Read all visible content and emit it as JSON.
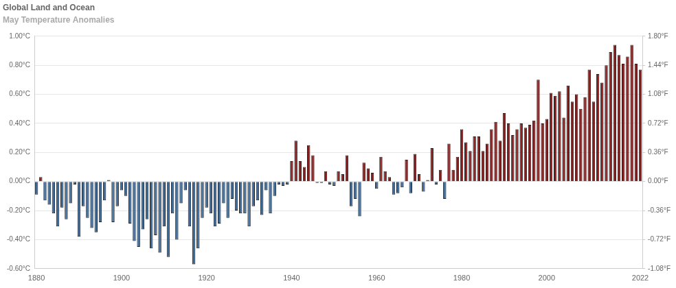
{
  "chart_data": {
    "type": "bar",
    "title": "Global Land and Ocean",
    "subtitle": "May Temperature Anomalies",
    "categories": [
      "1880",
      null,
      null,
      null,
      null,
      null,
      null,
      null,
      null,
      null,
      null,
      null,
      null,
      null,
      null,
      null,
      null,
      null,
      null,
      null,
      "1900",
      null,
      null,
      null,
      null,
      null,
      null,
      null,
      null,
      null,
      null,
      null,
      null,
      null,
      null,
      null,
      null,
      null,
      null,
      null,
      "1920",
      null,
      null,
      null,
      null,
      null,
      null,
      null,
      null,
      null,
      null,
      null,
      null,
      null,
      null,
      null,
      null,
      null,
      null,
      null,
      "1940",
      null,
      null,
      null,
      null,
      null,
      null,
      null,
      null,
      null,
      null,
      null,
      null,
      null,
      null,
      null,
      null,
      null,
      null,
      null,
      "1960",
      null,
      null,
      null,
      null,
      null,
      null,
      null,
      null,
      null,
      null,
      null,
      null,
      null,
      null,
      null,
      null,
      null,
      null,
      null,
      "1980",
      null,
      null,
      null,
      null,
      null,
      null,
      null,
      null,
      null,
      null,
      null,
      null,
      null,
      null,
      null,
      null,
      null,
      null,
      null,
      "2000",
      null,
      null,
      null,
      null,
      null,
      null,
      null,
      null,
      null,
      null,
      null,
      null,
      null,
      null,
      null,
      null,
      null,
      null,
      null,
      null,
      null,
      "2022"
    ],
    "values": [
      -0.09,
      0.03,
      -0.13,
      -0.16,
      -0.22,
      -0.31,
      -0.18,
      -0.26,
      -0.15,
      -0.02,
      -0.38,
      -0.17,
      -0.25,
      -0.32,
      -0.35,
      -0.28,
      -0.13,
      0.01,
      -0.28,
      -0.17,
      -0.06,
      -0.1,
      -0.29,
      -0.41,
      -0.45,
      -0.33,
      -0.26,
      -0.46,
      -0.37,
      -0.49,
      -0.31,
      -0.52,
      -0.22,
      -0.4,
      -0.15,
      -0.06,
      -0.31,
      -0.57,
      -0.46,
      -0.25,
      -0.18,
      -0.22,
      -0.31,
      -0.29,
      -0.15,
      -0.25,
      -0.12,
      -0.2,
      -0.22,
      -0.22,
      -0.31,
      -0.17,
      -0.13,
      -0.23,
      -0.06,
      -0.22,
      -0.1,
      -0.02,
      -0.03,
      -0.02,
      0.14,
      0.28,
      0.14,
      0.1,
      0.25,
      0.18,
      -0.01,
      -0.01,
      0.07,
      -0.02,
      -0.03,
      0.07,
      0.05,
      0.18,
      -0.17,
      -0.12,
      -0.24,
      0.13,
      0.09,
      0.06,
      -0.05,
      0.17,
      0.07,
      0.03,
      -0.09,
      -0.08,
      -0.04,
      0.15,
      -0.08,
      0.19,
      0.05,
      -0.07,
      0.01,
      0.23,
      -0.02,
      0.08,
      -0.12,
      0.26,
      0.08,
      0.17,
      0.36,
      0.27,
      0.21,
      0.31,
      0.31,
      0.21,
      0.26,
      0.36,
      0.41,
      0.28,
      0.47,
      0.4,
      0.32,
      0.36,
      0.4,
      0.37,
      0.39,
      0.42,
      0.7,
      0.4,
      0.43,
      0.61,
      0.59,
      0.62,
      0.44,
      0.66,
      0.55,
      0.6,
      0.5,
      0.58,
      0.77,
      0.55,
      0.74,
      0.68,
      0.8,
      0.89,
      0.94,
      0.87,
      0.81,
      0.86,
      0.94,
      0.81,
      0.77
    ],
    "colors": [
      "#3b6a9b",
      "#8b1a1a",
      "#3b6a9b",
      "#3b6a9b",
      "#3b6a9b",
      "#3b6a9b",
      "#3b6a9b",
      "#3b6a9b",
      "#3b6a9b",
      "#3b6a9b",
      "#3b6a9b",
      "#3b6a9b",
      "#3b6a9b",
      "#3b6a9b",
      "#3b6a9b",
      "#3b6a9b",
      "#3b6a9b",
      "#8b1a1a",
      "#3b6a9b",
      "#3b6a9b",
      "#3b6a9b",
      "#3b6a9b",
      "#3b6a9b",
      "#3b6a9b",
      "#3b6a9b",
      "#3b6a9b",
      "#3b6a9b",
      "#3b6a9b",
      "#3b6a9b",
      "#3b6a9b",
      "#3b6a9b",
      "#3b6a9b",
      "#3b6a9b",
      "#3b6a9b",
      "#3b6a9b",
      "#3b6a9b",
      "#3b6a9b",
      "#3b6a9b",
      "#3b6a9b",
      "#3b6a9b",
      "#3b6a9b",
      "#3b6a9b",
      "#3b6a9b",
      "#3b6a9b",
      "#3b6a9b",
      "#3b6a9b",
      "#3b6a9b",
      "#3b6a9b",
      "#3b6a9b",
      "#3b6a9b",
      "#3b6a9b",
      "#3b6a9b",
      "#3b6a9b",
      "#3b6a9b",
      "#3b6a9b",
      "#3b6a9b",
      "#3b6a9b",
      "#3b6a9b",
      "#3b6a9b",
      "#3b6a9b",
      "#8b1a1a",
      "#8b1a1a",
      "#8b1a1a",
      "#8b1a1a",
      "#8b1a1a",
      "#8b1a1a",
      "#3b6a9b",
      "#3b6a9b",
      "#8b1a1a",
      "#3b6a9b",
      "#3b6a9b",
      "#8b1a1a",
      "#8b1a1a",
      "#8b1a1a",
      "#3b6a9b",
      "#3b6a9b",
      "#3b6a9b",
      "#8b1a1a",
      "#8b1a1a",
      "#8b1a1a",
      "#3b6a9b",
      "#8b1a1a",
      "#8b1a1a",
      "#8b1a1a",
      "#3b6a9b",
      "#3b6a9b",
      "#3b6a9b",
      "#8b1a1a",
      "#3b6a9b",
      "#8b1a1a",
      "#8b1a1a",
      "#3b6a9b",
      "#8b1a1a",
      "#8b1a1a",
      "#3b6a9b",
      "#8b1a1a",
      "#3b6a9b",
      "#8b1a1a",
      "#8b1a1a",
      "#8b1a1a",
      "#8b1a1a",
      "#8b1a1a",
      "#8b1a1a",
      "#8b1a1a",
      "#8b1a1a",
      "#8b1a1a",
      "#8b1a1a",
      "#8b1a1a",
      "#8b1a1a",
      "#8b1a1a",
      "#8b1a1a",
      "#8b1a1a",
      "#8b1a1a",
      "#8b1a1a",
      "#8b1a1a",
      "#8b1a1a",
      "#8b1a1a",
      "#8b1a1a",
      "#8b1a1a",
      "#8b1a1a",
      "#8b1a1a",
      "#8b1a1a",
      "#8b1a1a",
      "#8b1a1a",
      "#8b1a1a",
      "#8b1a1a",
      "#8b1a1a",
      "#8b1a1a",
      "#8b1a1a",
      "#8b1a1a",
      "#8b1a1a",
      "#8b1a1a",
      "#8b1a1a",
      "#8b1a1a",
      "#8b1a1a",
      "#8b1a1a",
      "#8b1a1a",
      "#8b1a1a",
      "#8b1a1a",
      "#8b1a1a",
      "#8b1a1a",
      "#8b1a1a",
      "#8b1a1a"
    ],
    "ylim": [
      -0.6,
      1.0
    ],
    "yticks": [
      {
        "value": -0.6,
        "label": "-0.60°C"
      },
      {
        "value": -0.4,
        "label": "-0.40°C"
      },
      {
        "value": -0.2,
        "label": "-0.20°C"
      },
      {
        "value": 0,
        "label": "0.00°C"
      },
      {
        "value": 0.2,
        "label": "0.20°C"
      },
      {
        "value": 0.4,
        "label": "0.40°C"
      },
      {
        "value": 0.6,
        "label": "0.60°C"
      },
      {
        "value": 0.8,
        "label": "0.80°C"
      },
      {
        "value": 1.0,
        "label": "1.00°C"
      }
    ],
    "y2lim": [
      -1.08,
      1.8
    ],
    "y2ticks": [
      {
        "value": -1.08,
        "label": "-1.08°F"
      },
      {
        "value": -0.72,
        "label": "-0.72°F"
      },
      {
        "value": -0.36,
        "label": "-0.36°F"
      },
      {
        "value": 0,
        "label": "0.00°F"
      },
      {
        "value": 0.36,
        "label": "0.36°F"
      },
      {
        "value": 0.72,
        "label": "0.72°F"
      },
      {
        "value": 1.08,
        "label": "1.08°F"
      },
      {
        "value": 1.44,
        "label": "1.44°F"
      },
      {
        "value": 1.8,
        "label": "1.80°F"
      }
    ],
    "grid": true
  }
}
